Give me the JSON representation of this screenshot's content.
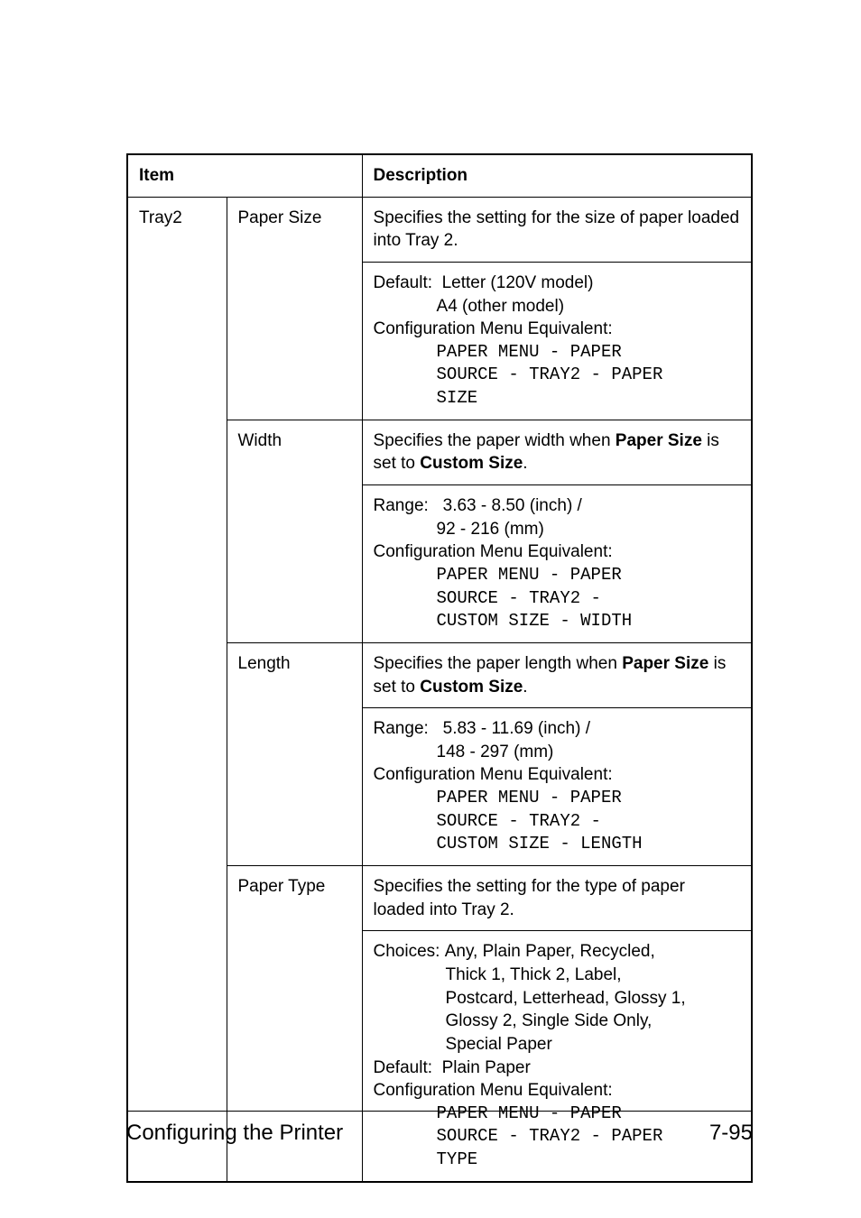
{
  "colors": {
    "bg": "#ffffff",
    "text": "#000000",
    "border": "#000000"
  },
  "typography": {
    "body_font": "Arial, Helvetica, sans-serif",
    "mono_font": "Courier New, monospace",
    "cell_fontsize": 19,
    "footer_fontsize": 24
  },
  "table": {
    "headers": {
      "item": "Item",
      "description": "Description"
    },
    "group": "Tray2",
    "rows": [
      {
        "name": "Paper Size",
        "intro_plain": "Specifies the setting for the size of paper loaded into Tray 2.",
        "default_label": "Default:",
        "default_val1": "Letter (120V model)",
        "default_val2": "A4 (other model)",
        "config_label": "Configuration Menu Equivalent:",
        "mono1": "PAPER MENU - PAPER",
        "mono2": "SOURCE - TRAY2 - PAPER",
        "mono3": "SIZE"
      },
      {
        "name": "Width",
        "intro_pre": "Specifies the paper width when ",
        "intro_bold1": "Paper Size",
        "intro_mid": " is set to ",
        "intro_bold2": "Custom Size",
        "intro_post": ".",
        "range_label": "Range:",
        "range_val1": "3.63 - 8.50 (inch) /",
        "range_val2": "92 - 216 (mm)",
        "config_label": "Configuration Menu Equivalent:",
        "mono1": "PAPER MENU - PAPER",
        "mono2": "SOURCE - TRAY2 -",
        "mono3": "CUSTOM SIZE - WIDTH"
      },
      {
        "name": "Length",
        "intro_pre": "Specifies the paper length when ",
        "intro_bold1": "Paper Size",
        "intro_mid": " is set to ",
        "intro_bold2": "Custom Size",
        "intro_post": ".",
        "range_label": "Range:",
        "range_val1": "5.83 - 11.69 (inch) /",
        "range_val2": "148 - 297 (mm)",
        "config_label": "Configuration Menu Equivalent:",
        "mono1": "PAPER MENU - PAPER",
        "mono2": "SOURCE - TRAY2 -",
        "mono3": "CUSTOM SIZE - LENGTH"
      },
      {
        "name": "Paper Type",
        "intro_plain": "Specifies the setting for the type of paper loaded into Tray 2.",
        "choices_label": "Choices:",
        "choices_l1": "Any, Plain Paper, Recycled,",
        "choices_l2": "Thick 1, Thick 2, Label,",
        "choices_l3": "Postcard, Letterhead, Glossy 1,",
        "choices_l4": "Glossy 2, Single Side Only,",
        "choices_l5": "Special Paper",
        "default_label": "Default:",
        "default_val1": "Plain Paper",
        "config_label": "Configuration Menu Equivalent:",
        "mono1": "PAPER MENU - PAPER",
        "mono2": "SOURCE - TRAY2 - PAPER",
        "mono3": "TYPE"
      }
    ]
  },
  "footer": {
    "left": "Configuring the Printer",
    "right": "7-95"
  }
}
